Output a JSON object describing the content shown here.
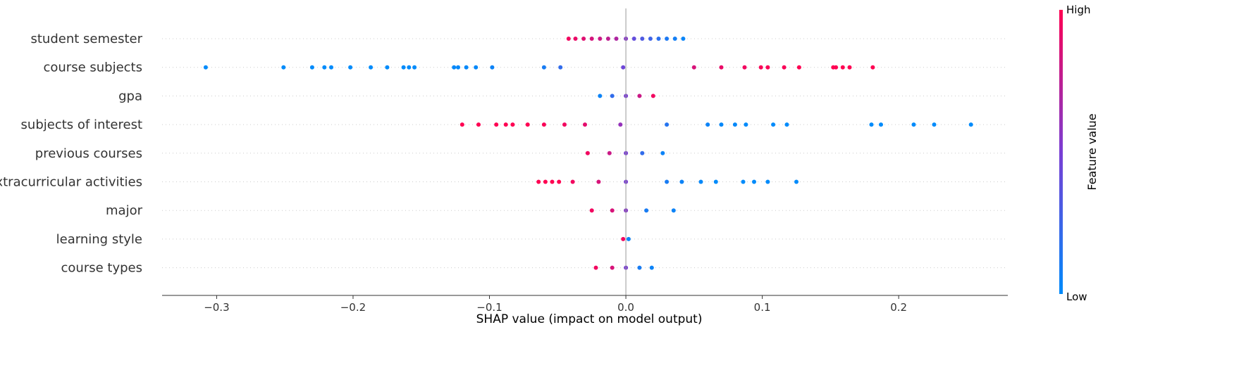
{
  "chart_data": {
    "type": "scatter",
    "subtype": "shap-beeswarm",
    "xlabel": "SHAP value (impact on model output)",
    "xlim": [
      -0.34,
      0.28
    ],
    "xticks": [
      -0.3,
      -0.2,
      -0.1,
      0.0,
      0.1,
      0.2
    ],
    "xtick_labels": [
      "−0.3",
      "−0.2",
      "−0.1",
      "0.0",
      "0.1",
      "0.2"
    ],
    "zero_line": true,
    "grid": false,
    "colorbar": {
      "title": "Feature value",
      "high_label": "High",
      "low_label": "Low",
      "low_color": "#008bfb",
      "high_color": "#ff0052",
      "placement": "right"
    },
    "features": [
      {
        "name": "student semester",
        "points": [
          {
            "x": -0.042,
            "f": 0.95
          },
          {
            "x": -0.037,
            "f": 0.92
          },
          {
            "x": -0.031,
            "f": 0.88
          },
          {
            "x": -0.025,
            "f": 0.84
          },
          {
            "x": -0.019,
            "f": 0.8
          },
          {
            "x": -0.013,
            "f": 0.76
          },
          {
            "x": -0.007,
            "f": 0.7
          },
          {
            "x": 0.0,
            "f": 0.55
          },
          {
            "x": 0.006,
            "f": 0.4
          },
          {
            "x": 0.012,
            "f": 0.32
          },
          {
            "x": 0.018,
            "f": 0.26
          },
          {
            "x": 0.024,
            "f": 0.18
          },
          {
            "x": 0.03,
            "f": 0.12
          },
          {
            "x": 0.036,
            "f": 0.08
          },
          {
            "x": 0.042,
            "f": 0.04
          }
        ]
      },
      {
        "name": "course subjects",
        "points": [
          {
            "x": -0.308,
            "f": 0.0
          },
          {
            "x": -0.251,
            "f": 0.0
          },
          {
            "x": -0.23,
            "f": 0.0
          },
          {
            "x": -0.221,
            "f": 0.0
          },
          {
            "x": -0.216,
            "f": 0.0
          },
          {
            "x": -0.202,
            "f": 0.0
          },
          {
            "x": -0.187,
            "f": 0.0
          },
          {
            "x": -0.175,
            "f": 0.0
          },
          {
            "x": -0.163,
            "f": 0.0
          },
          {
            "x": -0.159,
            "f": 0.0
          },
          {
            "x": -0.155,
            "f": 0.0
          },
          {
            "x": -0.126,
            "f": 0.02
          },
          {
            "x": -0.123,
            "f": 0.02
          },
          {
            "x": -0.117,
            "f": 0.02
          },
          {
            "x": -0.11,
            "f": 0.02
          },
          {
            "x": -0.098,
            "f": 0.05
          },
          {
            "x": -0.06,
            "f": 0.1
          },
          {
            "x": -0.048,
            "f": 0.2
          },
          {
            "x": -0.002,
            "f": 0.45
          },
          {
            "x": 0.05,
            "f": 0.85
          },
          {
            "x": 0.07,
            "f": 0.92
          },
          {
            "x": 0.087,
            "f": 0.95
          },
          {
            "x": 0.099,
            "f": 0.98
          },
          {
            "x": 0.104,
            "f": 0.98
          },
          {
            "x": 0.116,
            "f": 0.98
          },
          {
            "x": 0.127,
            "f": 1.0
          },
          {
            "x": 0.152,
            "f": 1.0
          },
          {
            "x": 0.154,
            "f": 1.0
          },
          {
            "x": 0.159,
            "f": 1.0
          },
          {
            "x": 0.164,
            "f": 1.0
          },
          {
            "x": 0.181,
            "f": 1.0
          }
        ]
      },
      {
        "name": "gpa",
        "points": [
          {
            "x": -0.019,
            "f": 0.05
          },
          {
            "x": -0.01,
            "f": 0.2
          },
          {
            "x": 0.0,
            "f": 0.5
          },
          {
            "x": 0.01,
            "f": 0.8
          },
          {
            "x": 0.02,
            "f": 0.95
          }
        ]
      },
      {
        "name": "subjects of interest",
        "points": [
          {
            "x": -0.12,
            "f": 1.0
          },
          {
            "x": -0.108,
            "f": 1.0
          },
          {
            "x": -0.095,
            "f": 1.0
          },
          {
            "x": -0.088,
            "f": 1.0
          },
          {
            "x": -0.083,
            "f": 1.0
          },
          {
            "x": -0.072,
            "f": 1.0
          },
          {
            "x": -0.06,
            "f": 0.98
          },
          {
            "x": -0.045,
            "f": 0.95
          },
          {
            "x": -0.03,
            "f": 0.9
          },
          {
            "x": -0.004,
            "f": 0.6
          },
          {
            "x": 0.03,
            "f": 0.15
          },
          {
            "x": 0.06,
            "f": 0.05
          },
          {
            "x": 0.07,
            "f": 0.02
          },
          {
            "x": 0.08,
            "f": 0.02
          },
          {
            "x": 0.088,
            "f": 0.0
          },
          {
            "x": 0.108,
            "f": 0.0
          },
          {
            "x": 0.118,
            "f": 0.0
          },
          {
            "x": 0.18,
            "f": 0.0
          },
          {
            "x": 0.187,
            "f": 0.0
          },
          {
            "x": 0.211,
            "f": 0.0
          },
          {
            "x": 0.226,
            "f": 0.0
          },
          {
            "x": 0.253,
            "f": 0.0
          }
        ]
      },
      {
        "name": "previous courses",
        "points": [
          {
            "x": -0.028,
            "f": 0.95
          },
          {
            "x": -0.012,
            "f": 0.8
          },
          {
            "x": 0.0,
            "f": 0.5
          },
          {
            "x": 0.012,
            "f": 0.2
          },
          {
            "x": 0.027,
            "f": 0.05
          }
        ]
      },
      {
        "name": "extracurricular activities",
        "points": [
          {
            "x": -0.064,
            "f": 1.0
          },
          {
            "x": -0.059,
            "f": 1.0
          },
          {
            "x": -0.054,
            "f": 1.0
          },
          {
            "x": -0.049,
            "f": 1.0
          },
          {
            "x": -0.039,
            "f": 0.95
          },
          {
            "x": -0.02,
            "f": 0.85
          },
          {
            "x": 0.0,
            "f": 0.5
          },
          {
            "x": 0.03,
            "f": 0.1
          },
          {
            "x": 0.041,
            "f": 0.05
          },
          {
            "x": 0.055,
            "f": 0.02
          },
          {
            "x": 0.066,
            "f": 0.0
          },
          {
            "x": 0.086,
            "f": 0.0
          },
          {
            "x": 0.094,
            "f": 0.0
          },
          {
            "x": 0.104,
            "f": 0.0
          },
          {
            "x": 0.125,
            "f": 0.0
          }
        ]
      },
      {
        "name": "major",
        "points": [
          {
            "x": -0.025,
            "f": 0.95
          },
          {
            "x": -0.01,
            "f": 0.85
          },
          {
            "x": 0.0,
            "f": 0.55
          },
          {
            "x": 0.015,
            "f": 0.1
          },
          {
            "x": 0.035,
            "f": 0.05
          }
        ]
      },
      {
        "name": "learning style",
        "points": [
          {
            "x": -0.002,
            "f": 0.95
          },
          {
            "x": 0.002,
            "f": 0.05
          }
        ]
      },
      {
        "name": "course types",
        "points": [
          {
            "x": -0.022,
            "f": 0.95
          },
          {
            "x": -0.01,
            "f": 0.85
          },
          {
            "x": 0.0,
            "f": 0.5
          },
          {
            "x": 0.01,
            "f": 0.1
          },
          {
            "x": 0.019,
            "f": 0.05
          }
        ]
      }
    ]
  }
}
